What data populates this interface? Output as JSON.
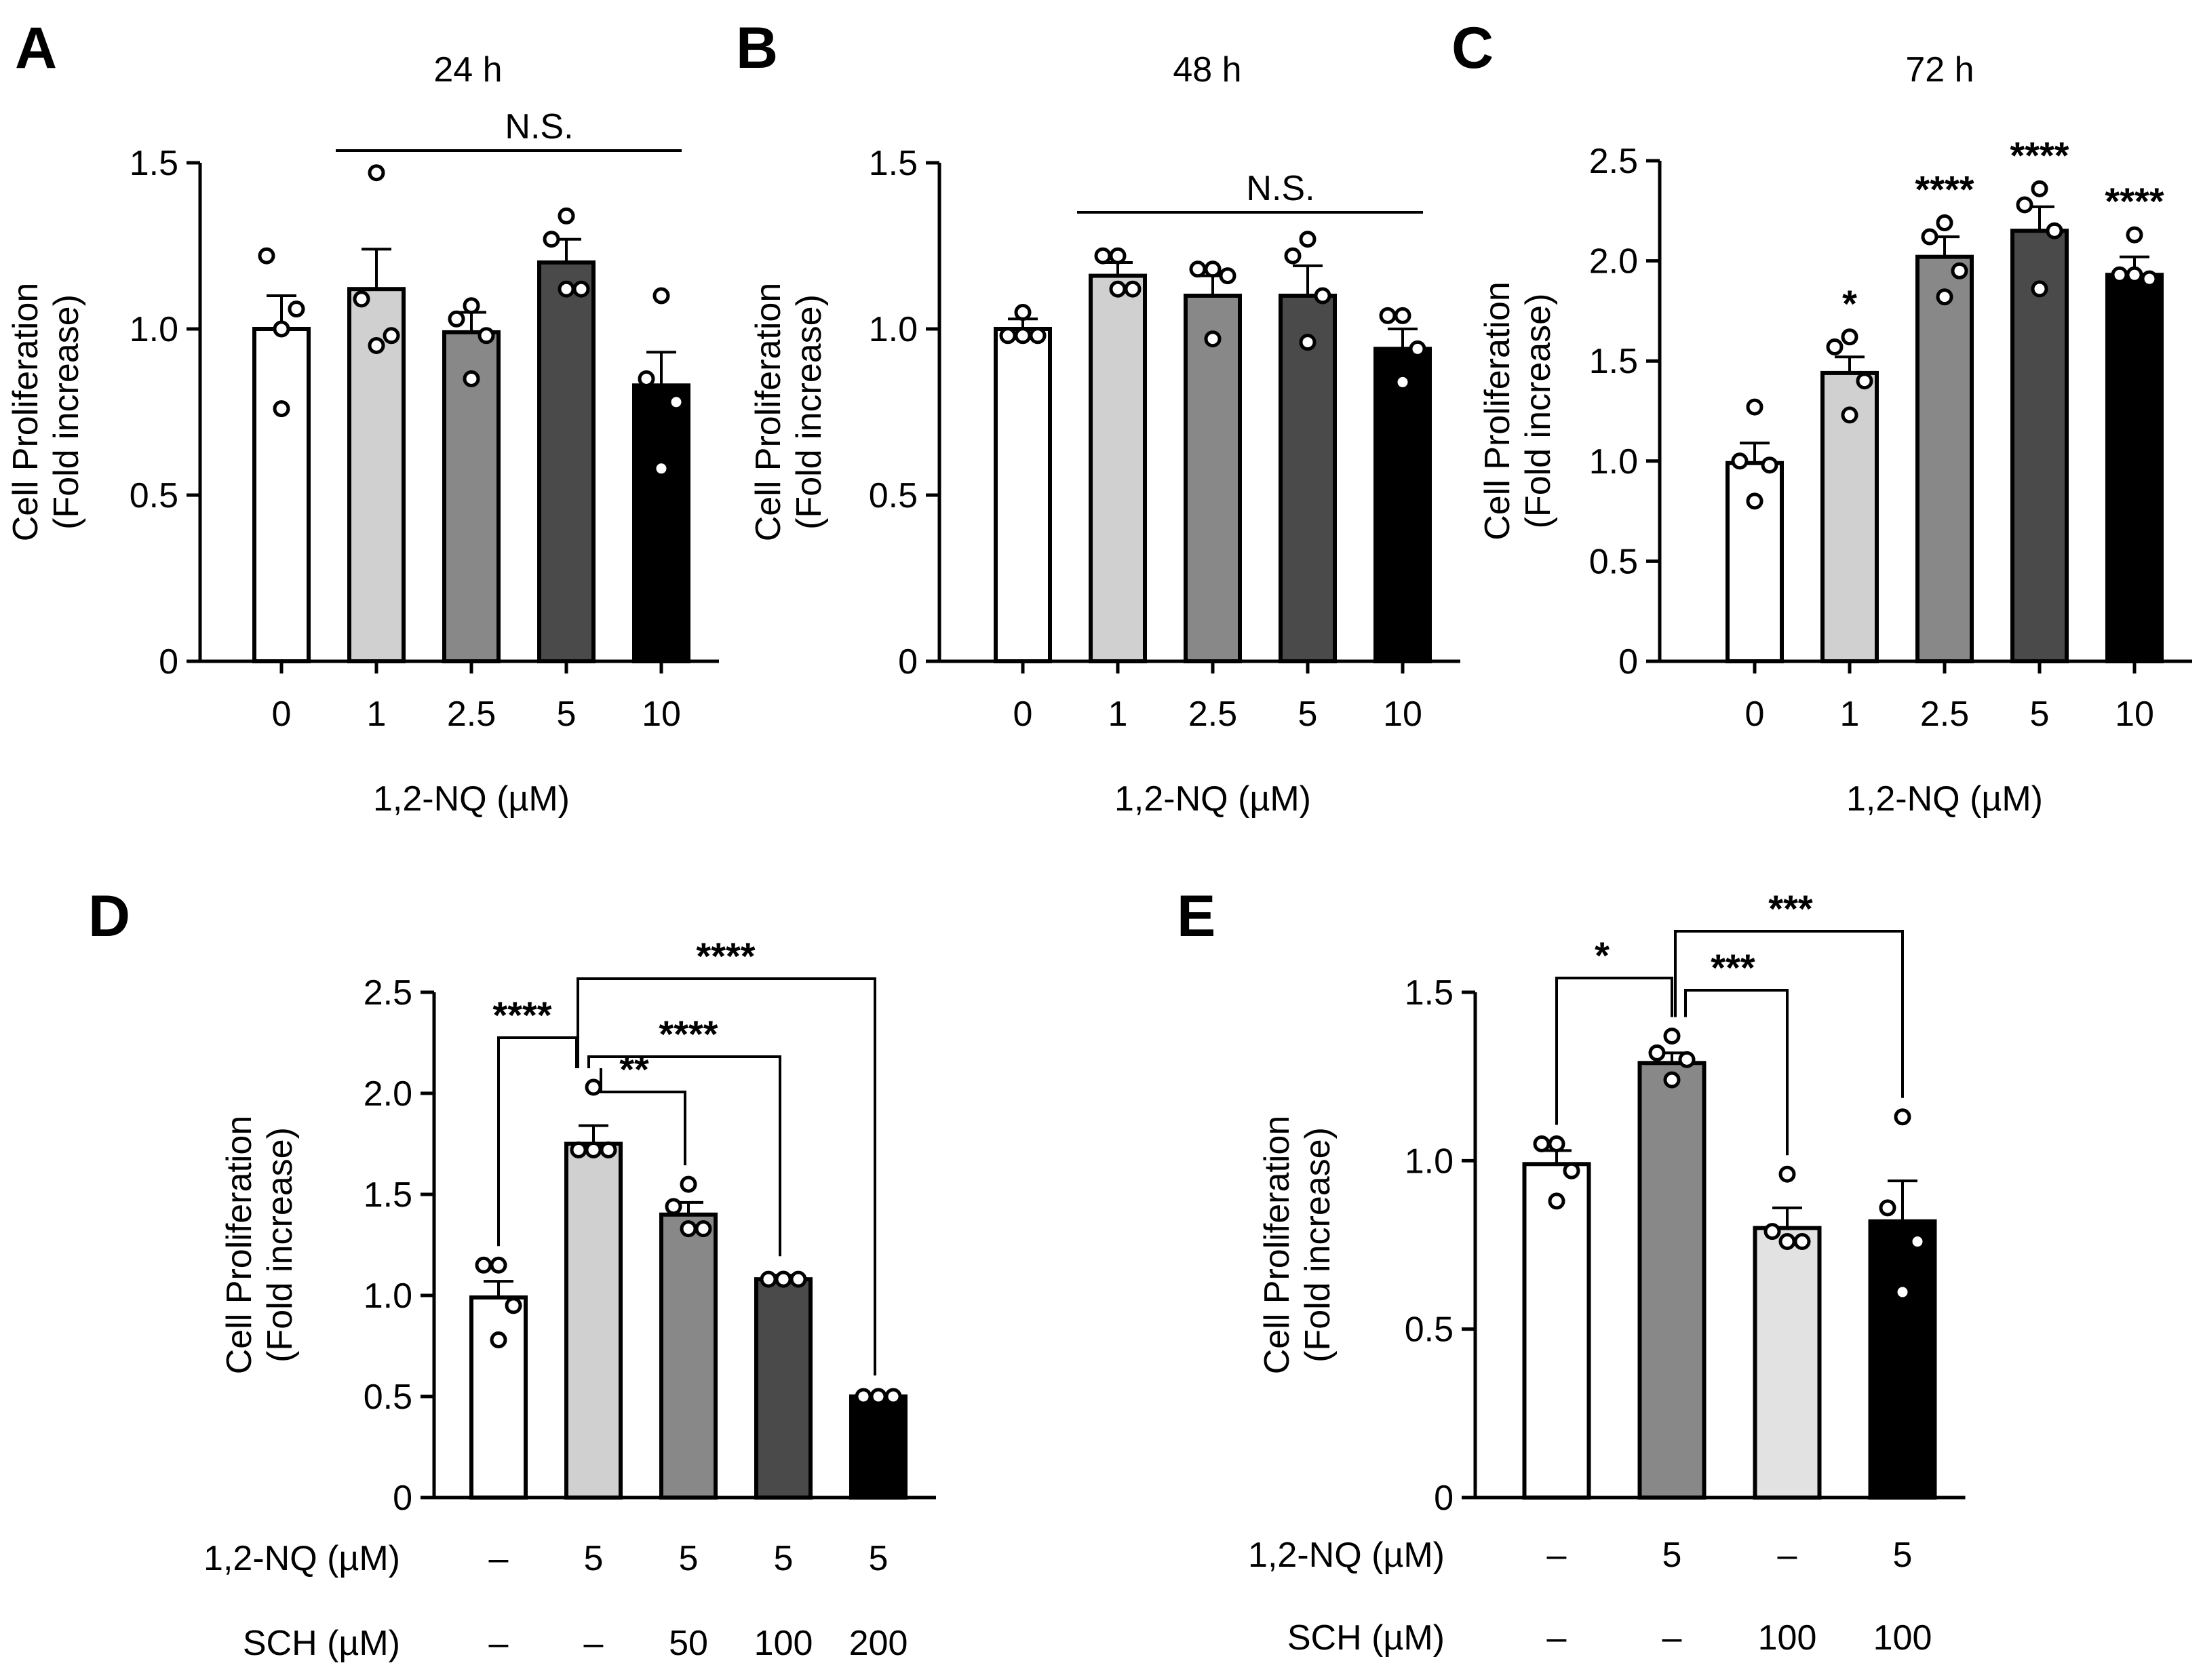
{
  "panels": [
    {
      "letter": "A",
      "title": "24 h",
      "ylabel": [
        "Cell Proliferation",
        "(Fold increase)"
      ],
      "xlabel": "1,2-NQ (µM)",
      "yticks": [
        "0",
        "0.5",
        "1.0",
        "1.5"
      ],
      "categories": [
        "0",
        "1",
        "2.5",
        "5",
        "10"
      ],
      "annotation": "N.S.",
      "significance": [
        "",
        "",
        "",
        "",
        ""
      ],
      "row_labels": []
    },
    {
      "letter": "B",
      "title": "48 h",
      "ylabel": [
        "Cell Proliferation",
        "(Fold increase)"
      ],
      "xlabel": "1,2-NQ (µM)",
      "yticks": [
        "0",
        "0.5",
        "1.0",
        "1.5"
      ],
      "categories": [
        "0",
        "1",
        "2.5",
        "5",
        "10"
      ],
      "annotation": "N.S.",
      "significance": [
        "",
        "",
        "",
        "",
        ""
      ],
      "row_labels": []
    },
    {
      "letter": "C",
      "title": "72 h",
      "ylabel": [
        "Cell Proliferation",
        "(Fold increase)"
      ],
      "xlabel": "1,2-NQ (µM)",
      "yticks": [
        "0",
        "0.5",
        "1.0",
        "1.5",
        "2.0",
        "2.5"
      ],
      "categories": [
        "0",
        "1",
        "2.5",
        "5",
        "10"
      ],
      "annotation": "",
      "significance": [
        "",
        "*",
        "****",
        "****",
        "****"
      ],
      "row_labels": []
    },
    {
      "letter": "D",
      "title": "",
      "ylabel": [
        "Cell Proliferation",
        "(Fold increase)"
      ],
      "xlabel": "",
      "yticks": [
        "0",
        "0.5",
        "1.0",
        "1.5",
        "2.0",
        "2.5"
      ],
      "categories": [],
      "annotation": "",
      "significance": [],
      "row_labels": [
        "1,2-NQ (µM)",
        "SCH (µM)"
      ],
      "rows": [
        [
          "–",
          "5",
          "5",
          "5",
          "5"
        ],
        [
          "–",
          "–",
          "50",
          "100",
          "200"
        ]
      ],
      "brackets": [
        "****",
        "**",
        "****",
        "****"
      ]
    },
    {
      "letter": "E",
      "title": "",
      "ylabel": [
        "Cell Proliferation",
        "(Fold increase)"
      ],
      "xlabel": "",
      "yticks": [
        "0",
        "0.5",
        "1.0",
        "1.5"
      ],
      "categories": [],
      "annotation": "",
      "significance": [],
      "row_labels": [
        "1,2-NQ (µM)",
        "SCH (µM)"
      ],
      "rows": [
        [
          "–",
          "5",
          "–",
          "5"
        ],
        [
          "–",
          "–",
          "100",
          "100"
        ]
      ],
      "brackets": [
        "*",
        "***",
        "***"
      ]
    }
  ],
  "chart_data": [
    {
      "type": "bar",
      "panel": "A",
      "title": "24 h",
      "xlabel": "1,2-NQ (µM)",
      "ylabel": "Cell Proliferation (Fold increase)",
      "ylim": [
        0,
        1.5
      ],
      "categories": [
        "0",
        "1",
        "2.5",
        "5",
        "10"
      ],
      "values": [
        1.0,
        1.12,
        0.99,
        1.2,
        0.83
      ],
      "errors": [
        0.1,
        0.12,
        0.06,
        0.07,
        0.1
      ],
      "points": [
        [
          1.0,
          1.22,
          1.06,
          0.76
        ],
        [
          1.47,
          1.09,
          0.98,
          0.95
        ],
        [
          1.07,
          1.03,
          0.98,
          0.85
        ],
        [
          1.34,
          1.27,
          1.12,
          1.12
        ],
        [
          1.1,
          0.85,
          0.78,
          0.58
        ]
      ],
      "colors": [
        "#ffffff",
        "#d0d0d0",
        "#888888",
        "#4a4a4a",
        "#000000"
      ]
    },
    {
      "type": "bar",
      "panel": "B",
      "title": "48 h",
      "xlabel": "1,2-NQ (µM)",
      "ylabel": "Cell Proliferation (Fold increase)",
      "ylim": [
        0,
        1.5
      ],
      "categories": [
        "0",
        "1",
        "2.5",
        "5",
        "10"
      ],
      "values": [
        1.0,
        1.16,
        1.1,
        1.1,
        0.94
      ],
      "errors": [
        0.03,
        0.04,
        0.06,
        0.09,
        0.06
      ],
      "points": [
        [
          1.05,
          0.98,
          0.98,
          0.98
        ],
        [
          1.22,
          1.22,
          1.12,
          1.12
        ],
        [
          1.18,
          1.18,
          1.16,
          0.97
        ],
        [
          1.27,
          1.22,
          1.1,
          0.96
        ],
        [
          1.04,
          1.04,
          0.94,
          0.84
        ]
      ],
      "colors": [
        "#ffffff",
        "#d0d0d0",
        "#888888",
        "#4a4a4a",
        "#000000"
      ]
    },
    {
      "type": "bar",
      "panel": "C",
      "title": "72 h",
      "xlabel": "1,2-NQ (µM)",
      "ylabel": "Cell Proliferation (Fold increase)",
      "ylim": [
        0,
        2.5
      ],
      "categories": [
        "0",
        "1",
        "2.5",
        "5",
        "10"
      ],
      "values": [
        0.99,
        1.44,
        2.02,
        2.15,
        1.93
      ],
      "errors": [
        0.1,
        0.08,
        0.1,
        0.12,
        0.09
      ],
      "points": [
        [
          1.27,
          1.0,
          0.98,
          0.8
        ],
        [
          1.62,
          1.57,
          1.4,
          1.23
        ],
        [
          2.19,
          2.12,
          1.95,
          1.82
        ],
        [
          2.36,
          2.28,
          2.15,
          1.86
        ],
        [
          2.13,
          1.93,
          1.91,
          1.93
        ]
      ],
      "significance": [
        "",
        "*",
        "****",
        "****",
        "****"
      ],
      "colors": [
        "#ffffff",
        "#d0d0d0",
        "#888888",
        "#4a4a4a",
        "#000000"
      ]
    },
    {
      "type": "bar",
      "panel": "D",
      "ylabel": "Cell Proliferation (Fold increase)",
      "ylim": [
        0,
        2.5
      ],
      "categories": [
        "1,2-NQ – / SCH –",
        "1,2-NQ 5 / SCH –",
        "1,2-NQ 5 / SCH 50",
        "1,2-NQ 5 / SCH 100",
        "1,2-NQ 5 / SCH 200"
      ],
      "values": [
        0.99,
        1.75,
        1.4,
        1.08,
        0.5
      ],
      "errors": [
        0.08,
        0.09,
        0.06,
        0.02,
        0.01
      ],
      "points": [
        [
          1.15,
          1.15,
          0.95,
          0.78
        ],
        [
          2.03,
          1.72,
          1.72,
          1.72
        ],
        [
          1.55,
          1.44,
          1.33,
          1.33
        ],
        [
          1.08,
          1.08,
          1.08,
          1.08
        ],
        [
          0.5,
          0.5,
          0.5,
          0.5
        ]
      ],
      "brackets": [
        {
          "from": 0,
          "to": 1,
          "label": "****"
        },
        {
          "from": 1,
          "to": 2,
          "label": "**"
        },
        {
          "from": 1,
          "to": 3,
          "label": "****"
        },
        {
          "from": 1,
          "to": 4,
          "label": "****"
        }
      ],
      "colors": [
        "#ffffff",
        "#d0d0d0",
        "#888888",
        "#4a4a4a",
        "#000000"
      ]
    },
    {
      "type": "bar",
      "panel": "E",
      "ylabel": "Cell Proliferation (Fold increase)",
      "ylim": [
        0,
        1.5
      ],
      "categories": [
        "1,2-NQ – / SCH –",
        "1,2-NQ 5 / SCH –",
        "1,2-NQ – / SCH 100",
        "1,2-NQ 5 / SCH 100"
      ],
      "values": [
        0.99,
        1.29,
        0.8,
        0.82
      ],
      "errors": [
        0.04,
        0.03,
        0.06,
        0.12
      ],
      "points": [
        [
          1.05,
          1.05,
          0.97,
          0.88
        ],
        [
          1.37,
          1.32,
          1.3,
          1.24
        ],
        [
          0.96,
          0.79,
          0.76,
          0.76
        ],
        [
          1.13,
          0.86,
          0.76,
          0.61
        ]
      ],
      "brackets": [
        {
          "from": 0,
          "to": 1,
          "label": "*"
        },
        {
          "from": 1,
          "to": 2,
          "label": "***"
        },
        {
          "from": 1,
          "to": 3,
          "label": "***"
        }
      ],
      "colors": [
        "#ffffff",
        "#888888",
        "#e2e2e2",
        "#000000"
      ]
    }
  ]
}
